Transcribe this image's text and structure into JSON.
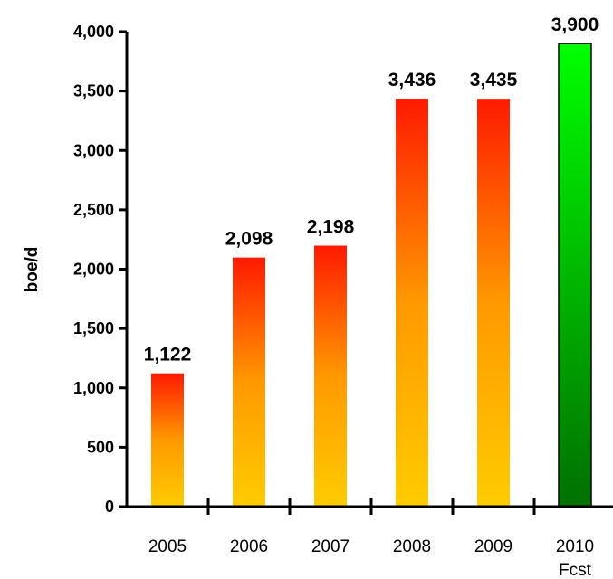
{
  "chart_data": {
    "type": "bar",
    "title": "",
    "xlabel": "",
    "ylabel": "boe/d",
    "ylim": [
      0,
      4000
    ],
    "yticks": [
      0,
      500,
      1000,
      1500,
      2000,
      2500,
      3000,
      3500,
      4000
    ],
    "ytick_labels": [
      "0",
      "500",
      "1,000",
      "1,500",
      "2,000",
      "2,500",
      "3,000",
      "3,500",
      "4,000"
    ],
    "categories": [
      "2005",
      "2006",
      "2007",
      "2008",
      "2009",
      "2010"
    ],
    "category_sublabels": [
      "",
      "",
      "",
      "",
      "",
      "Fcst"
    ],
    "values": [
      1122,
      2098,
      2198,
      3436,
      3435,
      3900
    ],
    "value_labels": [
      "1,122",
      "2,098",
      "2,198",
      "3,436",
      "3,435",
      "3,900"
    ],
    "bar_styles": [
      "actual",
      "actual",
      "actual",
      "actual",
      "actual",
      "forecast"
    ],
    "grid": false,
    "colors": {
      "actual_top": "#ff1a00",
      "actual_mid": "#ff9900",
      "actual_bottom": "#ffcc00",
      "forecast_top": "#00ff00",
      "forecast_bottom": "#007000",
      "axis": "#000000"
    }
  }
}
